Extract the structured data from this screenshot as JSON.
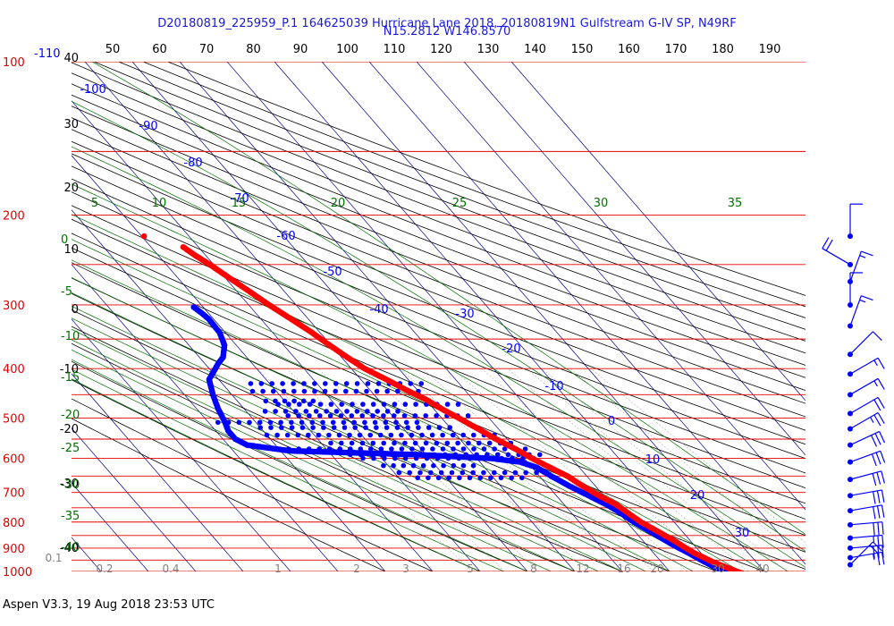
{
  "header": {
    "line1": "D20180819_225959_P.1 164625039 Hurricane Lane 2018, 20180819N1 Gulfstream G-IV SP, N49RF",
    "line2": "N15.2812 W146.8570"
  },
  "footer": {
    "text": "Aspen V3.3, 19 Aug 2018  23:53 UTC"
  },
  "colors": {
    "isobar": "#e00000",
    "temperature": "#ff0000",
    "dewpoint": "#0000ff",
    "isotherm": "#000080",
    "dry_adiabat": "#000000",
    "moist_adiabat": "#007000",
    "mixing_ratio": "#808080",
    "wind_barb": "#0000ff"
  },
  "chart_data": {
    "type": "scatter",
    "diagram": "skew-T log-P",
    "top_axis_ticks": [
      "50",
      "60",
      "70",
      "80",
      "90",
      "100",
      "110",
      "120",
      "130",
      "140",
      "150",
      "160",
      "170",
      "180",
      "190"
    ],
    "pressure_labels": [
      "100",
      "200",
      "300",
      "400",
      "500",
      "600",
      "700",
      "800",
      "900",
      "1000"
    ],
    "isobar_levels": [
      100,
      150,
      200,
      250,
      300,
      350,
      400,
      450,
      500,
      550,
      600,
      650,
      700,
      750,
      800,
      850,
      900,
      950,
      1000
    ],
    "height_labels": [
      "40",
      "30",
      "20",
      "10",
      "0",
      "-10",
      "-20",
      "-30",
      "-40"
    ],
    "corner_label": "-110",
    "isotherm_labels": [
      "-100",
      "-90",
      "-80",
      "-70",
      "-60",
      "-50",
      "-40",
      "-30",
      "-20",
      "-10",
      "0",
      "10",
      "20",
      "30"
    ],
    "moist_adiabat_labels": [
      "5",
      "10",
      "15",
      "20",
      "25",
      "30",
      "35"
    ],
    "left_green_labels": [
      "0",
      "-5",
      "-10",
      "-15",
      "-20",
      "-25",
      "-30",
      "-35",
      "-40"
    ],
    "mixing_ratio_labels": [
      "0.1",
      "0.2",
      "0.4",
      "1",
      "2",
      "3",
      "5",
      "8",
      "12",
      "16",
      "20",
      "30",
      "40"
    ],
    "stray_temperature_point": {
      "p": 220,
      "t": -49.5
    },
    "temperature_profile": [
      [
        231,
        -43.2
      ],
      [
        240,
        -42.2
      ],
      [
        250,
        -40.8
      ],
      [
        265,
        -39.2
      ],
      [
        280,
        -37.6
      ],
      [
        300,
        -35.7
      ],
      [
        320,
        -33.6
      ],
      [
        340,
        -31.7
      ],
      [
        360,
        -30.3
      ],
      [
        380,
        -28.8
      ],
      [
        400,
        -27.2
      ],
      [
        420,
        -24.6
      ],
      [
        440,
        -22.4
      ],
      [
        460,
        -19.9
      ],
      [
        480,
        -18.3
      ],
      [
        500,
        -16.4
      ],
      [
        525,
        -14.3
      ],
      [
        550,
        -12.4
      ],
      [
        575,
        -10.1
      ],
      [
        600,
        -8.3
      ],
      [
        625,
        -6.2
      ],
      [
        650,
        -4.1
      ],
      [
        680,
        -2.7
      ],
      [
        710,
        -1.0
      ],
      [
        740,
        1.0
      ],
      [
        770,
        2.0
      ],
      [
        800,
        3.0
      ],
      [
        830,
        4.6
      ],
      [
        860,
        6.1
      ],
      [
        880,
        7.0
      ],
      [
        900,
        7.7
      ],
      [
        920,
        8.6
      ],
      [
        940,
        9.8
      ],
      [
        960,
        11.0
      ],
      [
        980,
        12.6
      ],
      [
        1000,
        14.2
      ],
      [
        1012,
        15.3
      ]
    ],
    "dewpoint_profile": [
      [
        303,
        -52.0
      ],
      [
        310,
        -51.5
      ],
      [
        320,
        -51.0
      ],
      [
        340,
        -51.2
      ],
      [
        360,
        -52.5
      ],
      [
        380,
        -55.0
      ],
      [
        390,
        -57.0
      ],
      [
        420,
        -62.0
      ],
      [
        450,
        -64.0
      ],
      [
        480,
        -65.5
      ],
      [
        510,
        -66.5
      ],
      [
        530,
        -67.4
      ],
      [
        550,
        -67.4
      ],
      [
        565,
        -66.0
      ],
      [
        580,
        -58.0
      ],
      [
        590,
        -32.0
      ],
      [
        600,
        -17.0
      ],
      [
        610,
        -11.5
      ],
      [
        625,
        -9.0
      ],
      [
        650,
        -7.5
      ],
      [
        680,
        -5.5
      ],
      [
        710,
        -3.2
      ],
      [
        740,
        -1.0
      ],
      [
        770,
        0.5
      ],
      [
        800,
        1.5
      ],
      [
        830,
        3.0
      ],
      [
        860,
        4.4
      ],
      [
        880,
        5.3
      ],
      [
        900,
        6.3
      ],
      [
        920,
        7.4
      ],
      [
        940,
        8.3
      ],
      [
        960,
        9.3
      ],
      [
        980,
        10.3
      ],
      [
        1000,
        11.6
      ],
      [
        1012,
        12.5
      ]
    ],
    "dewpoint_scatter_bands": [
      {
        "p": 428,
        "t_min": -54,
        "t_max": -18
      },
      {
        "p": 443,
        "t_min": -55,
        "t_max": -20
      },
      {
        "p": 463,
        "t_min": -54,
        "t_max": -44
      },
      {
        "p": 470,
        "t_min": -52,
        "t_max": -14
      },
      {
        "p": 485,
        "t_min": -56,
        "t_max": -28
      },
      {
        "p": 495,
        "t_min": -52,
        "t_max": -14
      },
      {
        "p": 510,
        "t_min": -68,
        "t_max": -26
      },
      {
        "p": 522,
        "t_min": -60,
        "t_max": -20
      },
      {
        "p": 540,
        "t_min": -60,
        "t_max": -12
      },
      {
        "p": 560,
        "t_min": -48,
        "t_max": -10
      },
      {
        "p": 575,
        "t_min": -58,
        "t_max": -8
      },
      {
        "p": 590,
        "t_min": -46,
        "t_max": -6
      },
      {
        "p": 600,
        "t_min": -44,
        "t_max": -8
      },
      {
        "p": 620,
        "t_min": -41,
        "t_max": -22
      },
      {
        "p": 640,
        "t_min": -39,
        "t_max": -10
      },
      {
        "p": 655,
        "t_min": -36,
        "t_max": -14
      }
    ],
    "wind_barbs": [
      {
        "p": 220,
        "speed_kt": 10,
        "dir_deg": 360
      },
      {
        "p": 250,
        "speed_kt": 20,
        "dir_deg": 300
      },
      {
        "p": 270,
        "speed_kt": 15,
        "dir_deg": 20
      },
      {
        "p": 300,
        "speed_kt": 10,
        "dir_deg": 360
      },
      {
        "p": 330,
        "speed_kt": 15,
        "dir_deg": 20
      },
      {
        "p": 375,
        "speed_kt": 10,
        "dir_deg": 45
      },
      {
        "p": 410,
        "speed_kt": 15,
        "dir_deg": 60
      },
      {
        "p": 450,
        "speed_kt": 15,
        "dir_deg": 60
      },
      {
        "p": 490,
        "speed_kt": 20,
        "dir_deg": 60
      },
      {
        "p": 525,
        "speed_kt": 25,
        "dir_deg": 60
      },
      {
        "p": 565,
        "speed_kt": 30,
        "dir_deg": 65
      },
      {
        "p": 610,
        "speed_kt": 30,
        "dir_deg": 70
      },
      {
        "p": 660,
        "speed_kt": 30,
        "dir_deg": 75
      },
      {
        "p": 710,
        "speed_kt": 30,
        "dir_deg": 80
      },
      {
        "p": 760,
        "speed_kt": 30,
        "dir_deg": 80
      },
      {
        "p": 810,
        "speed_kt": 30,
        "dir_deg": 85
      },
      {
        "p": 860,
        "speed_kt": 25,
        "dir_deg": 85
      },
      {
        "p": 900,
        "speed_kt": 30,
        "dir_deg": 85
      },
      {
        "p": 940,
        "speed_kt": 25,
        "dir_deg": 80
      },
      {
        "p": 970,
        "speed_kt": 20,
        "dir_deg": 45
      }
    ]
  }
}
